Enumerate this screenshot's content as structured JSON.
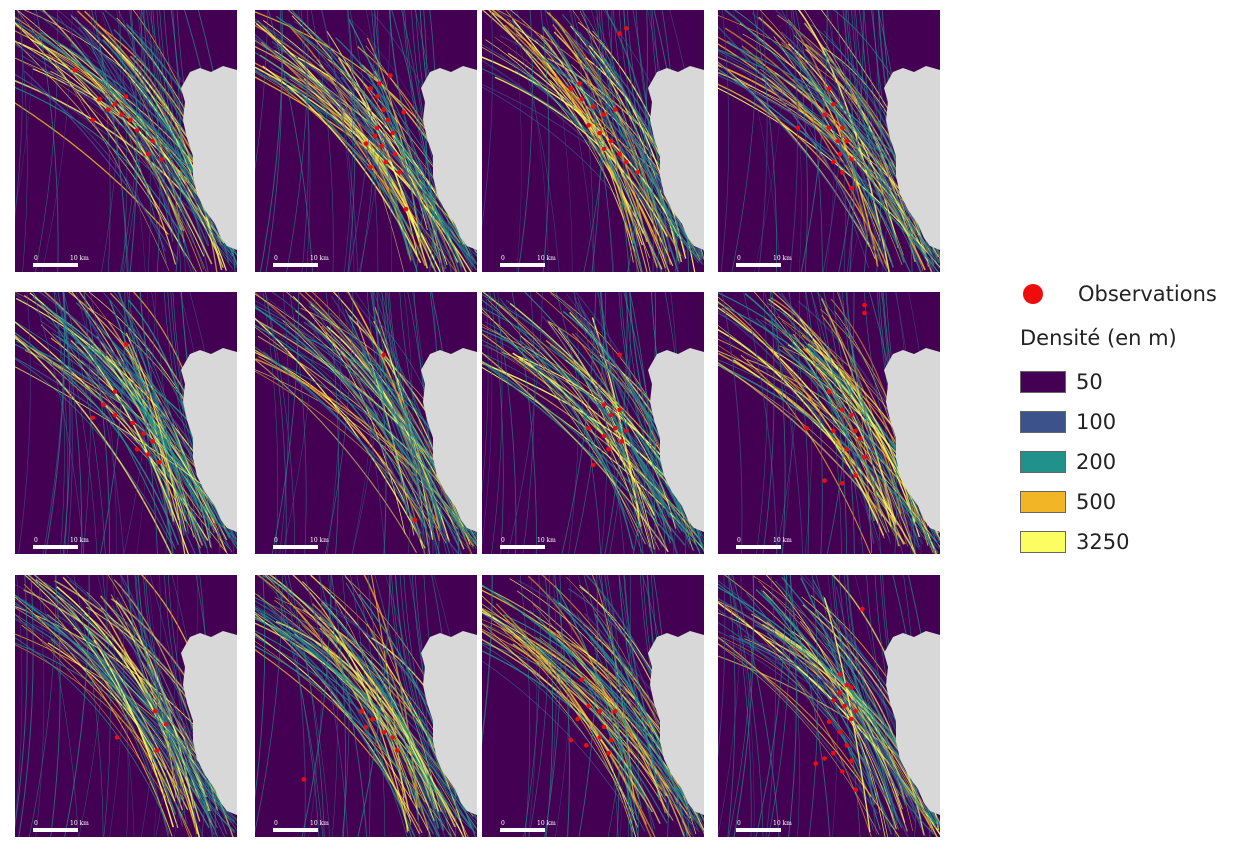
{
  "figure": {
    "panels": [
      {
        "panel": 1,
        "scale_min": "0",
        "scale_max": "10 km",
        "observations": [
          [
            0.27,
            0.23
          ],
          [
            0.38,
            0.34
          ],
          [
            0.42,
            0.38
          ],
          [
            0.48,
            0.4
          ],
          [
            0.5,
            0.33
          ],
          [
            0.35,
            0.42
          ],
          [
            0.55,
            0.46
          ],
          [
            0.6,
            0.55
          ],
          [
            0.66,
            0.57
          ],
          [
            0.62,
            0.5
          ],
          [
            0.52,
            0.42
          ],
          [
            0.45,
            0.36
          ]
        ]
      },
      {
        "panel": 2,
        "scale_min": "0",
        "scale_max": "10 km",
        "observations": [
          [
            0.52,
            0.3
          ],
          [
            0.55,
            0.33
          ],
          [
            0.58,
            0.38
          ],
          [
            0.6,
            0.42
          ],
          [
            0.62,
            0.47
          ],
          [
            0.54,
            0.48
          ],
          [
            0.5,
            0.51
          ],
          [
            0.57,
            0.52
          ],
          [
            0.63,
            0.55
          ],
          [
            0.59,
            0.58
          ],
          [
            0.65,
            0.62
          ],
          [
            0.55,
            0.45
          ],
          [
            0.67,
            0.39
          ],
          [
            0.56,
            0.28
          ],
          [
            0.61,
            0.25
          ],
          [
            0.52,
            0.6
          ],
          [
            0.68,
            0.76
          ]
        ]
      },
      {
        "panel": 3,
        "scale_min": "0",
        "scale_max": "10 km",
        "observations": [
          [
            0.62,
            0.09
          ],
          [
            0.65,
            0.07
          ],
          [
            0.4,
            0.3
          ],
          [
            0.45,
            0.34
          ],
          [
            0.5,
            0.37
          ],
          [
            0.55,
            0.4
          ],
          [
            0.53,
            0.47
          ],
          [
            0.58,
            0.5
          ],
          [
            0.62,
            0.55
          ],
          [
            0.55,
            0.53
          ],
          [
            0.65,
            0.58
          ],
          [
            0.48,
            0.44
          ],
          [
            0.6,
            0.38
          ],
          [
            0.44,
            0.28
          ],
          [
            0.7,
            0.62
          ]
        ]
      },
      {
        "panel": 4,
        "scale_min": "0",
        "scale_max": "10 km",
        "observations": [
          [
            0.5,
            0.3
          ],
          [
            0.52,
            0.36
          ],
          [
            0.48,
            0.4
          ],
          [
            0.5,
            0.45
          ],
          [
            0.56,
            0.45
          ],
          [
            0.58,
            0.5
          ],
          [
            0.55,
            0.55
          ],
          [
            0.6,
            0.57
          ],
          [
            0.52,
            0.58
          ],
          [
            0.56,
            0.62
          ],
          [
            0.36,
            0.45
          ],
          [
            0.6,
            0.68
          ],
          [
            0.54,
            0.5
          ]
        ]
      },
      {
        "panel": 5,
        "scale_min": "0",
        "scale_max": "10 km",
        "observations": [
          [
            0.5,
            0.2
          ],
          [
            0.45,
            0.38
          ],
          [
            0.4,
            0.43
          ],
          [
            0.45,
            0.47
          ],
          [
            0.53,
            0.5
          ],
          [
            0.58,
            0.54
          ],
          [
            0.62,
            0.57
          ],
          [
            0.6,
            0.62
          ],
          [
            0.65,
            0.65
          ],
          [
            0.35,
            0.48
          ],
          [
            0.55,
            0.6
          ]
        ]
      },
      {
        "panel": 6,
        "scale_min": "0",
        "scale_max": "10 km",
        "observations": [
          [
            0.58,
            0.24
          ],
          [
            0.72,
            0.87
          ]
        ]
      },
      {
        "panel": 7,
        "scale_min": "0",
        "scale_max": "10 km",
        "observations": [
          [
            0.62,
            0.24
          ],
          [
            0.55,
            0.43
          ],
          [
            0.58,
            0.47
          ],
          [
            0.62,
            0.45
          ],
          [
            0.6,
            0.52
          ],
          [
            0.55,
            0.55
          ],
          [
            0.63,
            0.57
          ],
          [
            0.57,
            0.6
          ],
          [
            0.48,
            0.52
          ],
          [
            0.65,
            0.53
          ],
          [
            0.5,
            0.66
          ]
        ]
      },
      {
        "panel": 8,
        "scale_min": "0",
        "scale_max": "10 km",
        "observations": [
          [
            0.66,
            0.05
          ],
          [
            0.66,
            0.08
          ],
          [
            0.5,
            0.38
          ],
          [
            0.56,
            0.45
          ],
          [
            0.6,
            0.47
          ],
          [
            0.52,
            0.53
          ],
          [
            0.62,
            0.53
          ],
          [
            0.58,
            0.6
          ],
          [
            0.66,
            0.63
          ],
          [
            0.62,
            0.7
          ],
          [
            0.48,
            0.72
          ],
          [
            0.56,
            0.73
          ],
          [
            0.4,
            0.52
          ],
          [
            0.64,
            0.56
          ]
        ]
      },
      {
        "panel": 9,
        "scale_min": "0",
        "scale_max": "10 km",
        "observations": [
          [
            0.63,
            0.52
          ],
          [
            0.68,
            0.57
          ],
          [
            0.46,
            0.62
          ],
          [
            0.64,
            0.67
          ]
        ]
      },
      {
        "panel": 10,
        "scale_min": "0",
        "scale_max": "10 km",
        "observations": [
          [
            0.48,
            0.52
          ],
          [
            0.53,
            0.55
          ],
          [
            0.58,
            0.6
          ],
          [
            0.62,
            0.62
          ],
          [
            0.64,
            0.67
          ],
          [
            0.5,
            0.58
          ],
          [
            0.22,
            0.78
          ]
        ]
      },
      {
        "panel": 11,
        "scale_min": "0",
        "scale_max": "10 km",
        "observations": [
          [
            0.45,
            0.4
          ],
          [
            0.48,
            0.5
          ],
          [
            0.53,
            0.52
          ],
          [
            0.43,
            0.55
          ],
          [
            0.55,
            0.58
          ],
          [
            0.4,
            0.63
          ],
          [
            0.47,
            0.65
          ],
          [
            0.53,
            0.62
          ],
          [
            0.58,
            0.63
          ],
          [
            0.6,
            0.52
          ],
          [
            0.57,
            0.68
          ]
        ]
      },
      {
        "panel": 12,
        "scale_min": "0",
        "scale_max": "10 km",
        "observations": [
          [
            0.55,
            0.38
          ],
          [
            0.58,
            0.42
          ],
          [
            0.55,
            0.45
          ],
          [
            0.6,
            0.43
          ],
          [
            0.52,
            0.48
          ],
          [
            0.57,
            0.5
          ],
          [
            0.62,
            0.52
          ],
          [
            0.6,
            0.55
          ],
          [
            0.5,
            0.56
          ],
          [
            0.55,
            0.6
          ],
          [
            0.58,
            0.65
          ],
          [
            0.52,
            0.68
          ],
          [
            0.48,
            0.7
          ],
          [
            0.44,
            0.72
          ],
          [
            0.56,
            0.75
          ],
          [
            0.6,
            0.71
          ],
          [
            0.65,
            0.13
          ],
          [
            0.62,
            0.82
          ]
        ]
      }
    ]
  },
  "legend": {
    "observations_label": "Observations",
    "observations_color": "#f00c0c",
    "density_title": "Densité (en m)",
    "classes": [
      {
        "label": "50",
        "color": "#440154"
      },
      {
        "label": "100",
        "color": "#3b528b"
      },
      {
        "label": "200",
        "color": "#21918c"
      },
      {
        "label": "500",
        "color": "#f2b526"
      },
      {
        "label": "3250",
        "color": "#fbfd60"
      }
    ]
  }
}
